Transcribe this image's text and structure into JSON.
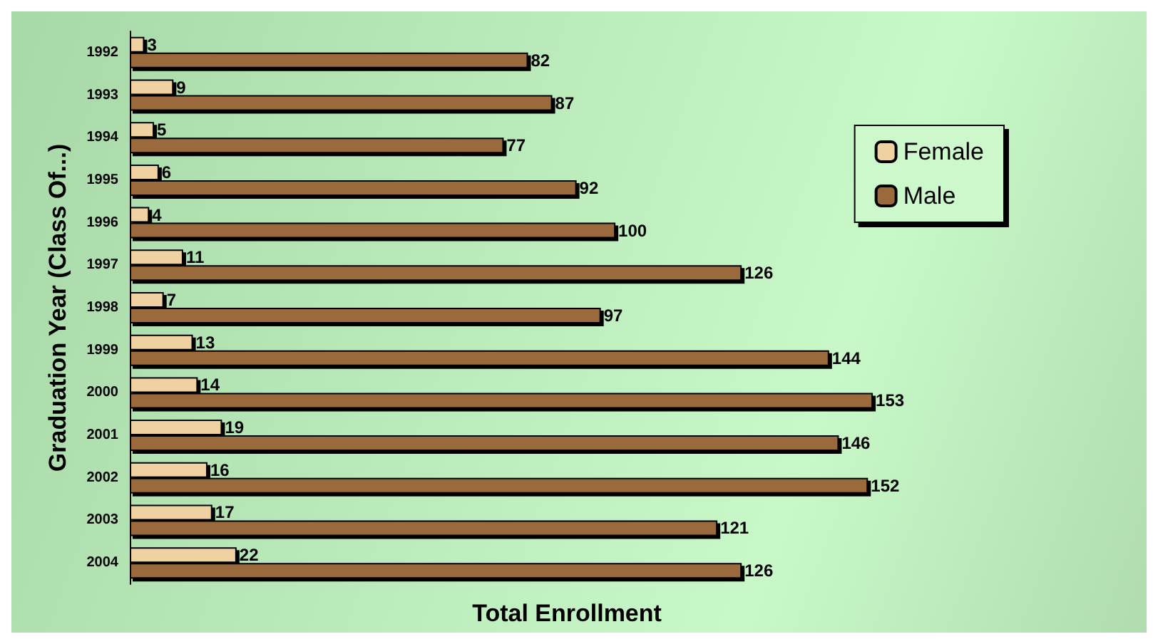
{
  "chart_data": {
    "type": "bar",
    "orientation": "horizontal",
    "xlabel": "Total Enrollment",
    "ylabel": "Graduation Year (Class Of...)",
    "categories": [
      "1992",
      "1993",
      "1994",
      "1995",
      "1996",
      "1997",
      "1998",
      "1999",
      "2000",
      "2001",
      "2002",
      "2003",
      "2004"
    ],
    "series": [
      {
        "name": "Female",
        "color": "#f0d2a2",
        "values": [
          3,
          9,
          5,
          6,
          4,
          11,
          7,
          13,
          14,
          19,
          16,
          17,
          22
        ]
      },
      {
        "name": "Male",
        "color": "#9a6a3c",
        "values": [
          82,
          87,
          77,
          92,
          100,
          126,
          97,
          144,
          153,
          146,
          152,
          121,
          126
        ]
      }
    ],
    "data_labels": true,
    "legend": "top right",
    "grid": false,
    "tick_labels": "y"
  }
}
